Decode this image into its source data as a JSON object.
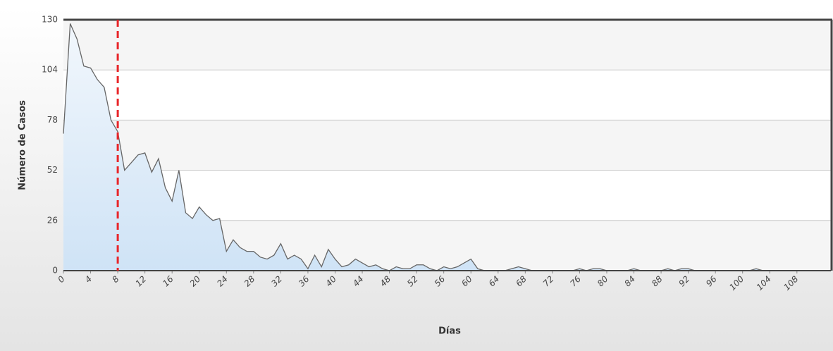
{
  "chart_data": {
    "type": "area",
    "x_label": "Días",
    "y_label": "Número de Casos",
    "x": [
      0,
      1,
      2,
      3,
      4,
      5,
      6,
      7,
      8,
      9,
      10,
      11,
      12,
      13,
      14,
      15,
      16,
      17,
      18,
      19,
      20,
      21,
      22,
      23,
      24,
      25,
      26,
      27,
      28,
      29,
      30,
      31,
      32,
      33,
      34,
      35,
      36,
      37,
      38,
      39,
      40,
      41,
      42,
      43,
      44,
      45,
      46,
      47,
      48,
      49,
      50,
      51,
      52,
      53,
      54,
      55,
      56,
      57,
      58,
      59,
      60,
      61,
      62,
      63,
      64,
      65,
      66,
      67,
      68,
      69,
      70,
      71,
      72,
      73,
      74,
      75,
      76,
      77,
      78,
      79,
      80,
      81,
      82,
      83,
      84,
      85,
      86,
      87,
      88,
      89,
      90,
      91,
      92,
      93,
      94,
      95,
      96,
      97,
      98,
      99,
      100,
      101,
      102,
      103,
      104,
      105,
      106,
      107,
      108,
      109,
      110,
      111,
      112,
      113
    ],
    "values": [
      71,
      128,
      120,
      106,
      105,
      99,
      95,
      78,
      72,
      52,
      56,
      60,
      61,
      51,
      58,
      43,
      36,
      52,
      30,
      27,
      33,
      29,
      26,
      27,
      10,
      16,
      12,
      10,
      10,
      7,
      6,
      8,
      14,
      6,
      8,
      6,
      1,
      8,
      2,
      11,
      6,
      2,
      3,
      6,
      4,
      2,
      3,
      1,
      0,
      2,
      1,
      1,
      3,
      3,
      1,
      0,
      2,
      1,
      2,
      4,
      6,
      1,
      0,
      0,
      0,
      0,
      1,
      2,
      1,
      0,
      0,
      0,
      0,
      0,
      0,
      0,
      1,
      0,
      1,
      1,
      0,
      0,
      0,
      0,
      1,
      0,
      0,
      0,
      0,
      1,
      0,
      1,
      1,
      0,
      0,
      0,
      0,
      0,
      0,
      0,
      0,
      0,
      1,
      0,
      0,
      0,
      0,
      0,
      0,
      0,
      0,
      0,
      0,
      0
    ],
    "color": "#666666",
    "fill": "#cfe3f6",
    "xlim": [
      0,
      113
    ],
    "ylim": [
      0,
      130
    ],
    "xticks": [
      0,
      4,
      8,
      12,
      16,
      20,
      24,
      28,
      32,
      36,
      40,
      44,
      48,
      52,
      56,
      60,
      64,
      68,
      72,
      76,
      80,
      84,
      88,
      92,
      96,
      100,
      104,
      108
    ],
    "yticks": [
      0,
      26,
      52,
      78,
      104,
      130
    ],
    "grid": true,
    "reference_line": {
      "x": 8,
      "color": "#e8262a"
    }
  }
}
